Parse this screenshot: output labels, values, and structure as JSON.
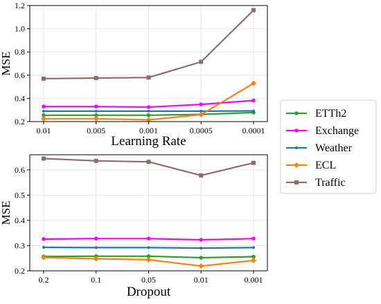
{
  "chart_data": [
    {
      "type": "line",
      "xlabel": "Learning Rate",
      "ylabel": "MSE",
      "categories": [
        "0.01",
        "0.005",
        "0.001",
        "0.0005",
        "0.0001"
      ],
      "ylim": [
        0.2,
        1.2
      ],
      "yticks": [
        "0.2",
        "0.4",
        "0.6",
        "0.8",
        "1.0",
        "1.2"
      ],
      "grid": true,
      "series": [
        {
          "name": "ETTh2",
          "color": "#2ca02c",
          "marker": "circle",
          "values": [
            0.255,
            0.255,
            0.255,
            0.262,
            0.278
          ]
        },
        {
          "name": "Exchange",
          "color": "#ff00ff",
          "marker": "circle",
          "values": [
            0.33,
            0.33,
            0.325,
            0.348,
            0.382
          ]
        },
        {
          "name": "Weather",
          "color": "#1f77b4",
          "marker": "dot",
          "values": [
            0.29,
            0.29,
            0.29,
            0.29,
            0.292
          ]
        },
        {
          "name": "ECL",
          "color": "#ff7f0e",
          "marker": "diamond",
          "values": [
            0.225,
            0.225,
            0.215,
            0.26,
            0.53
          ]
        },
        {
          "name": "Traffic",
          "color": "#8c6d6b",
          "marker": "square",
          "values": [
            0.57,
            0.575,
            0.58,
            0.715,
            1.16
          ]
        }
      ]
    },
    {
      "type": "line",
      "xlabel": "Dropout",
      "ylabel": "MSE",
      "categories": [
        "0.2",
        "0.1",
        "0.05",
        "0.01",
        "0.001"
      ],
      "ylim": [
        0.2,
        0.66
      ],
      "yticks": [
        "0.2",
        "0.3",
        "0.4",
        "0.5",
        "0.6"
      ],
      "grid": true,
      "series": [
        {
          "name": "ETTh2",
          "color": "#2ca02c",
          "marker": "circle",
          "values": [
            0.257,
            0.258,
            0.258,
            0.252,
            0.256
          ]
        },
        {
          "name": "Exchange",
          "color": "#ff00ff",
          "marker": "circle",
          "values": [
            0.326,
            0.328,
            0.328,
            0.323,
            0.328
          ]
        },
        {
          "name": "Weather",
          "color": "#1f77b4",
          "marker": "dot",
          "values": [
            0.293,
            0.292,
            0.292,
            0.29,
            0.292
          ]
        },
        {
          "name": "ECL",
          "color": "#ff7f0e",
          "marker": "diamond",
          "values": [
            0.253,
            0.248,
            0.244,
            0.219,
            0.241
          ]
        },
        {
          "name": "Traffic",
          "color": "#8c6d6b",
          "marker": "square",
          "values": [
            0.645,
            0.636,
            0.632,
            0.578,
            0.628
          ]
        }
      ]
    }
  ],
  "legend": {
    "placement": "right",
    "items": [
      {
        "label": "ETTh2",
        "color": "#2ca02c",
        "marker": "circle"
      },
      {
        "label": "Exchange",
        "color": "#ff00ff",
        "marker": "circle"
      },
      {
        "label": "Weather",
        "color": "#1f77b4",
        "marker": "dot"
      },
      {
        "label": "ECL",
        "color": "#ff7f0e",
        "marker": "diamond"
      },
      {
        "label": "Traffic",
        "color": "#8c6d6b",
        "marker": "square"
      }
    ]
  }
}
